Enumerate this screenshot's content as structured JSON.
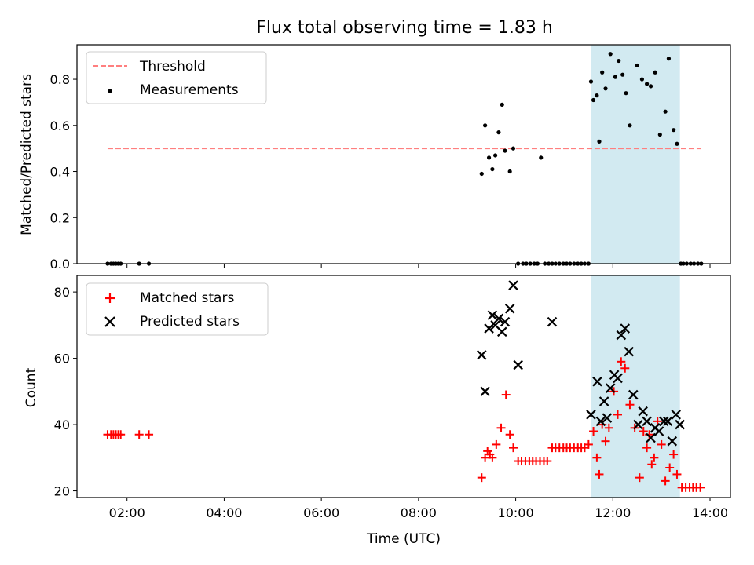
{
  "title": "Flux total observing time = 1.83 h",
  "xlabel": "Time (UTC)",
  "xticks": [
    {
      "h": 2,
      "label": "02:00"
    },
    {
      "h": 4,
      "label": "04:00"
    },
    {
      "h": 6,
      "label": "06:00"
    },
    {
      "h": 8,
      "label": "08:00"
    },
    {
      "h": 10,
      "label": "10:00"
    },
    {
      "h": 12,
      "label": "12:00"
    },
    {
      "h": 14,
      "label": "14:00"
    }
  ],
  "xlim": [
    0.97,
    14.42
  ],
  "colors": {
    "threshold": "#ff7f7f",
    "shade": "#add8e6",
    "matched": "#ff0000",
    "predicted": "#000000"
  },
  "chart_data": [
    {
      "type": "scatter",
      "ylabel": "Matched/Predicted stars",
      "ylim": [
        0,
        0.95
      ],
      "yticks": [
        "0.0",
        "0.2",
        "0.4",
        "0.6",
        "0.8"
      ],
      "legend_position": "top-left",
      "shaded_x": [
        11.55,
        13.38
      ],
      "threshold": {
        "name": "Threshold",
        "y": 0.5,
        "x": [
          1.6,
          13.82
        ]
      },
      "series": [
        {
          "name": "Measurements",
          "x": [
            1.6,
            1.67,
            1.72,
            1.77,
            1.82,
            1.87,
            2.25,
            2.45,
            9.3,
            9.37,
            9.45,
            9.52,
            9.58,
            9.65,
            9.72,
            9.78,
            9.88,
            9.95,
            10.05,
            10.15,
            10.22,
            10.3,
            10.38,
            10.45,
            10.52,
            10.6,
            10.68,
            10.75,
            10.82,
            10.9,
            10.98,
            11.05,
            11.12,
            11.2,
            11.28,
            11.35,
            11.42,
            11.5,
            11.55,
            11.6,
            11.67,
            11.72,
            11.78,
            11.85,
            11.95,
            12.05,
            12.12,
            12.2,
            12.27,
            12.35,
            12.5,
            12.6,
            12.7,
            12.78,
            12.87,
            12.97,
            13.08,
            13.15,
            13.25,
            13.32,
            13.4,
            13.45,
            13.52,
            13.6,
            13.67,
            13.75,
            13.82
          ],
          "y": [
            0,
            0,
            0,
            0,
            0,
            0,
            0,
            0,
            0.39,
            0.6,
            0.46,
            0.41,
            0.47,
            0.57,
            0.69,
            0.49,
            0.4,
            0.5,
            0,
            0,
            0,
            0,
            0,
            0,
            0.46,
            0,
            0,
            0,
            0,
            0,
            0,
            0,
            0,
            0,
            0,
            0,
            0,
            0,
            0.79,
            0.71,
            0.73,
            0.53,
            0.83,
            0.76,
            0.91,
            0.81,
            0.88,
            0.82,
            0.74,
            0.6,
            0.86,
            0.8,
            0.78,
            0.77,
            0.83,
            0.56,
            0.66,
            0.89,
            0.58,
            0.52,
            0,
            0,
            0,
            0,
            0,
            0,
            0
          ]
        }
      ]
    },
    {
      "type": "scatter",
      "ylabel": "Count",
      "ylim": [
        18,
        85
      ],
      "yticks": [
        "20",
        "40",
        "60",
        "80"
      ],
      "legend_position": "top-left",
      "shaded_x": [
        11.55,
        13.38
      ],
      "series": [
        {
          "name": "Matched stars",
          "x": [
            1.6,
            1.67,
            1.72,
            1.77,
            1.82,
            1.87,
            2.25,
            2.45,
            9.3,
            9.37,
            9.42,
            9.47,
            9.52,
            9.6,
            9.7,
            9.8,
            9.88,
            9.95,
            10.05,
            10.12,
            10.2,
            10.28,
            10.35,
            10.42,
            10.5,
            10.58,
            10.65,
            10.75,
            10.82,
            10.9,
            10.98,
            11.05,
            11.12,
            11.2,
            11.28,
            11.35,
            11.42,
            11.5,
            11.6,
            11.67,
            11.72,
            11.78,
            11.85,
            11.92,
            12.02,
            12.1,
            12.17,
            12.25,
            12.35,
            12.45,
            12.55,
            12.63,
            12.7,
            12.75,
            12.8,
            12.85,
            12.92,
            13.0,
            13.08,
            13.17,
            13.25,
            13.32,
            13.42,
            13.5,
            13.58,
            13.65,
            13.72,
            13.8
          ],
          "y": [
            37,
            37,
            37,
            37,
            37,
            37,
            37,
            37,
            24,
            30,
            32,
            31,
            30,
            34,
            39,
            49,
            37,
            33,
            29,
            29,
            29,
            29,
            29,
            29,
            29,
            29,
            29,
            33,
            33,
            33,
            33,
            33,
            33,
            33,
            33,
            33,
            33,
            34,
            38,
            30,
            25,
            40,
            35,
            39,
            50,
            43,
            59,
            57,
            46,
            39,
            24,
            38,
            33,
            37,
            28,
            30,
            41,
            34,
            23,
            27,
            31,
            25,
            21,
            21,
            21,
            21,
            21,
            21
          ]
        },
        {
          "name": "Predicted stars",
          "x": [
            9.3,
            9.37,
            9.45,
            9.52,
            9.58,
            9.65,
            9.72,
            9.78,
            9.88,
            9.95,
            10.05,
            10.75,
            11.55,
            11.68,
            11.75,
            11.82,
            11.88,
            11.95,
            12.03,
            12.1,
            12.17,
            12.25,
            12.33,
            12.42,
            12.52,
            12.62,
            12.7,
            12.78,
            12.87,
            12.95,
            13.05,
            13.13,
            13.22,
            13.3,
            13.38
          ],
          "y": [
            61,
            50,
            69,
            73,
            70,
            72,
            68,
            71,
            75,
            82,
            58,
            71,
            43,
            53,
            41,
            47,
            42,
            51,
            55,
            54,
            67,
            69,
            62,
            49,
            40,
            44,
            41,
            36,
            39,
            38,
            41,
            41,
            35,
            43,
            40
          ]
        }
      ]
    }
  ]
}
